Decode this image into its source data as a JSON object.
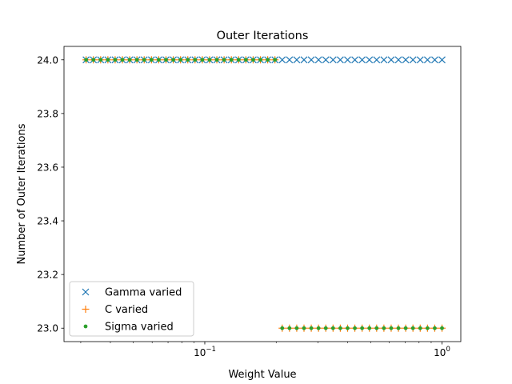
{
  "chart_data": {
    "type": "scatter",
    "title": "Outer Iterations",
    "xlabel": "Weight Value",
    "ylabel": "Number of Outer Iterations",
    "xscale": "log",
    "xlim": [
      0.0255,
      1.2
    ],
    "ylim": [
      22.95,
      24.05
    ],
    "x_ticks": [
      {
        "value": 0.1,
        "base": "10",
        "exp": "−1"
      },
      {
        "value": 1,
        "base": "10",
        "exp": "0"
      }
    ],
    "y_ticks": [
      {
        "value": 23.0,
        "label": "23.0"
      },
      {
        "value": 23.2,
        "label": "23.2"
      },
      {
        "value": 23.4,
        "label": "23.4"
      },
      {
        "value": 23.6,
        "label": "23.6"
      },
      {
        "value": 23.8,
        "label": "23.8"
      },
      {
        "value": 24.0,
        "label": "24.0"
      }
    ],
    "grid": false,
    "legend_position": "lower-left",
    "series": [
      {
        "name": "Gamma varied",
        "marker": "x",
        "color": "#1f77b4",
        "x_range": [
          0.0316,
          1.0
        ],
        "count": 50,
        "y": 24
      },
      {
        "name": "C varied",
        "marker": "+",
        "color": "#ff7f0e",
        "x_range": [
          0.0316,
          1.0
        ],
        "count": 50,
        "y_points": [
          {
            "x_max": 0.21,
            "y": 24
          },
          {
            "x_min": 0.21,
            "y": 23
          }
        ]
      },
      {
        "name": "Sigma varied",
        "marker": "dot",
        "color": "#2ca02c",
        "x_range": [
          0.0316,
          1.0
        ],
        "count": 50,
        "y_points": [
          {
            "x_max": 0.21,
            "y": 24
          },
          {
            "x_min": 0.21,
            "y": 23
          }
        ]
      }
    ]
  }
}
